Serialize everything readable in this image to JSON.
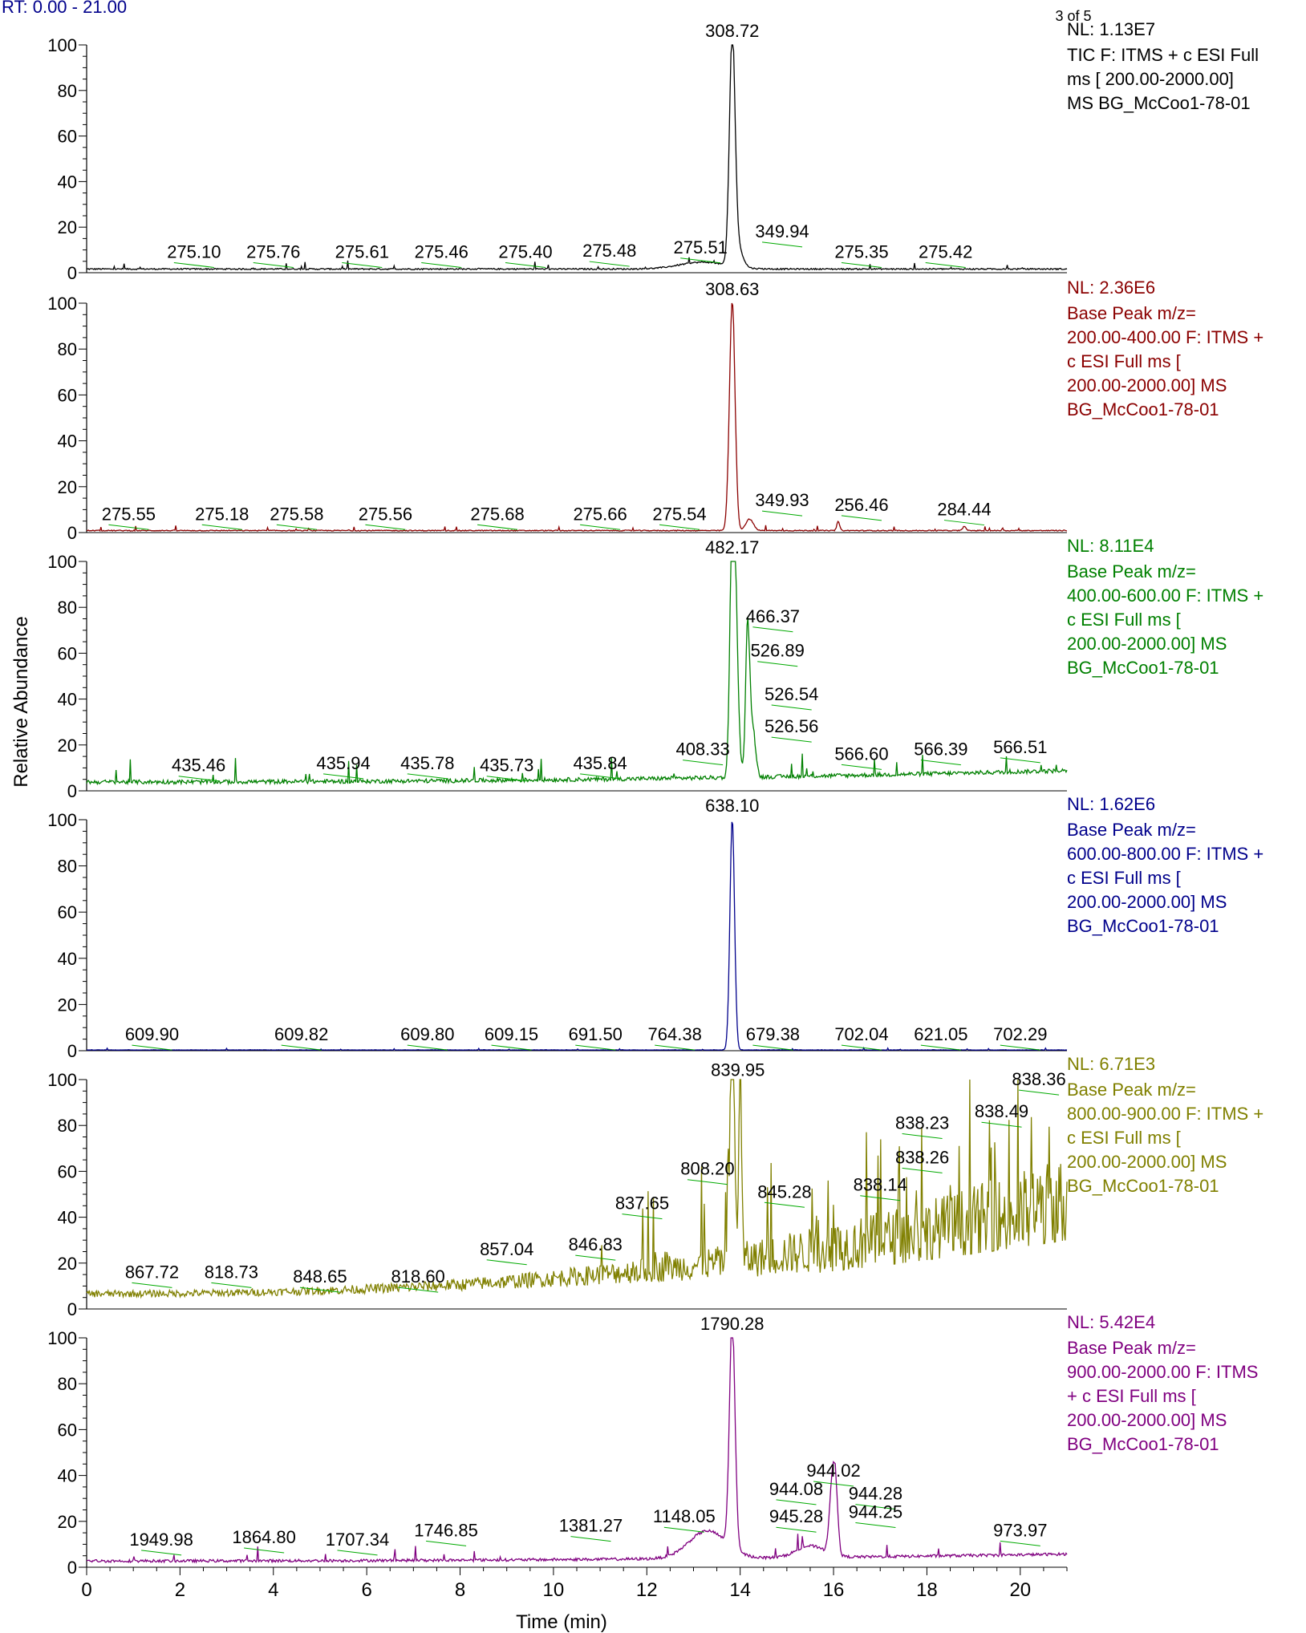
{
  "header": {
    "rt_range": "RT: 0.00 - 21.00",
    "page_indicator": "3 of 5"
  },
  "colors": {
    "axis": "#000000",
    "label_leader": "#00aa00",
    "header_text": "#00008b"
  },
  "chart_data": {
    "type": "line",
    "xlabel": "Time (min)",
    "ylabel": "Relative Abundance",
    "xlim": [
      0,
      21
    ],
    "x_ticks": [
      0,
      2,
      4,
      6,
      8,
      10,
      12,
      14,
      16,
      18,
      20
    ],
    "y_ticks": [
      0,
      20,
      40,
      60,
      80,
      100
    ],
    "ylim": [
      0,
      100
    ],
    "panels": [
      {
        "color": "#000000",
        "nl": "NL: 1.13E7",
        "legend": [
          "TIC F: ITMS + c ESI Full",
          "ms [ 200.00-2000.00]",
          "MS BG_McCoo1-78-01"
        ],
        "baseline": 1.5,
        "noise": 0.6,
        "peaks": [
          {
            "x": 13.83,
            "y": 100,
            "w": 0.06
          },
          {
            "x": 13.95,
            "y": 9,
            "w": 0.1
          },
          {
            "x": 13.2,
            "y": 3,
            "w": 0.5
          }
        ],
        "labels": [
          {
            "x": 2.3,
            "y": 3,
            "text": "275.10"
          },
          {
            "x": 4.0,
            "y": 3,
            "text": "275.76"
          },
          {
            "x": 5.9,
            "y": 3,
            "text": "275.61"
          },
          {
            "x": 7.6,
            "y": 3,
            "text": "275.46"
          },
          {
            "x": 9.4,
            "y": 3,
            "text": "275.40"
          },
          {
            "x": 11.2,
            "y": 3.5,
            "text": "275.48"
          },
          {
            "x": 13.15,
            "y": 5,
            "text": "275.51"
          },
          {
            "x": 13.83,
            "y": 100,
            "text": "308.72"
          },
          {
            "x": 14.9,
            "y": 12,
            "text": "349.94"
          },
          {
            "x": 16.6,
            "y": 3,
            "text": "275.35"
          },
          {
            "x": 18.4,
            "y": 3,
            "text": "275.42"
          }
        ]
      },
      {
        "color": "#8b0000",
        "nl": "NL: 2.36E6",
        "legend": [
          "Base Peak m/z=",
          "200.00-400.00 F: ITMS +",
          "c ESI Full ms [",
          "200.00-2000.00]  MS",
          "BG_McCoo1-78-01"
        ],
        "baseline": 0.8,
        "noise": 0.4,
        "peaks": [
          {
            "x": 13.83,
            "y": 100,
            "w": 0.06
          },
          {
            "x": 14.2,
            "y": 5,
            "w": 0.08
          },
          {
            "x": 16.1,
            "y": 4,
            "w": 0.03
          },
          {
            "x": 18.8,
            "y": 2,
            "w": 0.03
          }
        ],
        "labels": [
          {
            "x": 0.9,
            "y": 2,
            "text": "275.55"
          },
          {
            "x": 2.9,
            "y": 2,
            "text": "275.18"
          },
          {
            "x": 4.5,
            "y": 2,
            "text": "275.58"
          },
          {
            "x": 6.4,
            "y": 2,
            "text": "275.56"
          },
          {
            "x": 8.8,
            "y": 2,
            "text": "275.68"
          },
          {
            "x": 11.0,
            "y": 2,
            "text": "275.66"
          },
          {
            "x": 12.7,
            "y": 2,
            "text": "275.54"
          },
          {
            "x": 13.83,
            "y": 100,
            "text": "308.63"
          },
          {
            "x": 14.9,
            "y": 8,
            "text": "349.93"
          },
          {
            "x": 16.6,
            "y": 6,
            "text": "256.46"
          },
          {
            "x": 18.8,
            "y": 4,
            "text": "284.44"
          }
        ]
      },
      {
        "color": "#008000",
        "nl": "NL: 8.11E4",
        "legend": [
          "Base Peak m/z=",
          "400.00-600.00 F: ITMS +",
          "c ESI Full ms [",
          "200.00-2000.00]  MS",
          "BG_McCoo1-78-01"
        ],
        "baseline": 3.5,
        "noise": 1.8,
        "rise": 5,
        "peaks": [
          {
            "x": 13.83,
            "y": 100,
            "w": 0.05
          },
          {
            "x": 13.9,
            "y": 63,
            "w": 0.06
          },
          {
            "x": 14.15,
            "y": 50,
            "w": 0.04
          },
          {
            "x": 14.2,
            "y": 28,
            "w": 0.05
          },
          {
            "x": 14.3,
            "y": 14,
            "w": 0.05
          }
        ],
        "labels": [
          {
            "x": 2.4,
            "y": 5,
            "text": "435.46"
          },
          {
            "x": 5.5,
            "y": 6,
            "text": "435.94"
          },
          {
            "x": 7.3,
            "y": 6,
            "text": "435.78"
          },
          {
            "x": 9.0,
            "y": 5,
            "text": "435.73"
          },
          {
            "x": 11.0,
            "y": 6,
            "text": "435.84"
          },
          {
            "x": 13.2,
            "y": 12,
            "text": "408.33"
          },
          {
            "x": 13.83,
            "y": 100,
            "text": "482.17"
          },
          {
            "x": 14.7,
            "y": 70,
            "text": "466.37"
          },
          {
            "x": 14.8,
            "y": 55,
            "text": "526.89"
          },
          {
            "x": 15.1,
            "y": 36,
            "text": "526.54"
          },
          {
            "x": 15.1,
            "y": 22,
            "text": "526.56"
          },
          {
            "x": 16.6,
            "y": 10,
            "text": "566.60"
          },
          {
            "x": 18.3,
            "y": 12,
            "text": "566.39"
          },
          {
            "x": 20.0,
            "y": 13,
            "text": "566.51"
          }
        ]
      },
      {
        "color": "#00008b",
        "nl": "NL: 1.62E6",
        "legend": [
          "Base Peak m/z=",
          "600.00-800.00 F: ITMS +",
          "c ESI Full ms [",
          "200.00-2000.00]  MS",
          "BG_McCoo1-78-01"
        ],
        "baseline": 0.3,
        "noise": 0.15,
        "peaks": [
          {
            "x": 13.83,
            "y": 100,
            "w": 0.05
          }
        ],
        "labels": [
          {
            "x": 1.4,
            "y": 1,
            "text": "609.90"
          },
          {
            "x": 4.6,
            "y": 1,
            "text": "609.82"
          },
          {
            "x": 7.3,
            "y": 1,
            "text": "609.80"
          },
          {
            "x": 9.1,
            "y": 1,
            "text": "609.15"
          },
          {
            "x": 10.9,
            "y": 1,
            "text": "691.50"
          },
          {
            "x": 12.6,
            "y": 1,
            "text": "764.38"
          },
          {
            "x": 13.83,
            "y": 100,
            "text": "638.10"
          },
          {
            "x": 14.7,
            "y": 1,
            "text": "679.38"
          },
          {
            "x": 16.6,
            "y": 1,
            "text": "702.04"
          },
          {
            "x": 18.3,
            "y": 1,
            "text": "621.05"
          },
          {
            "x": 20.0,
            "y": 1,
            "text": "702.29"
          }
        ]
      },
      {
        "color": "#808000",
        "nl": "NL: 6.71E3",
        "legend": [
          "Base Peak m/z=",
          "800.00-900.00 F: ITMS +",
          "c ESI Full ms [",
          "200.00-2000.00]  MS",
          "BG_McCoo1-78-01"
        ],
        "baseline": 6,
        "noise": 3,
        "rise": 30,
        "spiky": true,
        "peaks": [
          {
            "x": 13.83,
            "y": 98,
            "w": 0.05
          },
          {
            "x": 14.0,
            "y": 85,
            "w": 0.03
          }
        ],
        "labels": [
          {
            "x": 1.4,
            "y": 10,
            "text": "867.72"
          },
          {
            "x": 3.1,
            "y": 10,
            "text": "818.73"
          },
          {
            "x": 5.0,
            "y": 8,
            "text": "848.65"
          },
          {
            "x": 7.1,
            "y": 8,
            "text": "818.60"
          },
          {
            "x": 9.0,
            "y": 20,
            "text": "857.04"
          },
          {
            "x": 10.9,
            "y": 22,
            "text": "846.83"
          },
          {
            "x": 11.9,
            "y": 40,
            "text": "837.65"
          },
          {
            "x": 13.3,
            "y": 55,
            "text": "808.20"
          },
          {
            "x": 13.95,
            "y": 98,
            "text": "839.95"
          },
          {
            "x": 14.95,
            "y": 45,
            "text": "845.28"
          },
          {
            "x": 17.0,
            "y": 48,
            "text": "838.14"
          },
          {
            "x": 17.9,
            "y": 60,
            "text": "838.26"
          },
          {
            "x": 17.9,
            "y": 75,
            "text": "838.23"
          },
          {
            "x": 19.6,
            "y": 80,
            "text": "838.49"
          },
          {
            "x": 20.4,
            "y": 94,
            "text": "838.36"
          }
        ]
      },
      {
        "color": "#800080",
        "nl": "NL: 5.42E4",
        "legend": [
          "Base Peak m/z=",
          "900.00-2000.00 F: ITMS",
          "+ c ESI Full ms [",
          "200.00-2000.00]  MS",
          "BG_McCoo1-78-01"
        ],
        "baseline": 2.5,
        "noise": 1.2,
        "rise": 3,
        "peaks": [
          {
            "x": 13.83,
            "y": 100,
            "w": 0.06
          },
          {
            "x": 13.3,
            "y": 12,
            "w": 0.4
          },
          {
            "x": 15.97,
            "y": 30,
            "w": 0.06
          },
          {
            "x": 16.05,
            "y": 22,
            "w": 0.05
          },
          {
            "x": 15.5,
            "y": 5,
            "w": 0.3
          }
        ],
        "labels": [
          {
            "x": 1.6,
            "y": 6,
            "text": "1949.98"
          },
          {
            "x": 3.8,
            "y": 7,
            "text": "1864.80"
          },
          {
            "x": 5.8,
            "y": 6,
            "text": "1707.34"
          },
          {
            "x": 7.7,
            "y": 10,
            "text": "1746.85"
          },
          {
            "x": 10.8,
            "y": 12,
            "text": "1381.27"
          },
          {
            "x": 12.8,
            "y": 16,
            "text": "1148.05"
          },
          {
            "x": 13.83,
            "y": 100,
            "text": "1790.28"
          },
          {
            "x": 15.2,
            "y": 28,
            "text": "944.08"
          },
          {
            "x": 16.0,
            "y": 36,
            "text": "944.02"
          },
          {
            "x": 16.9,
            "y": 26,
            "text": "944.28"
          },
          {
            "x": 15.2,
            "y": 16,
            "text": "945.28"
          },
          {
            "x": 16.9,
            "y": 18,
            "text": "944.25"
          },
          {
            "x": 20.0,
            "y": 10,
            "text": "973.97"
          }
        ]
      }
    ]
  }
}
